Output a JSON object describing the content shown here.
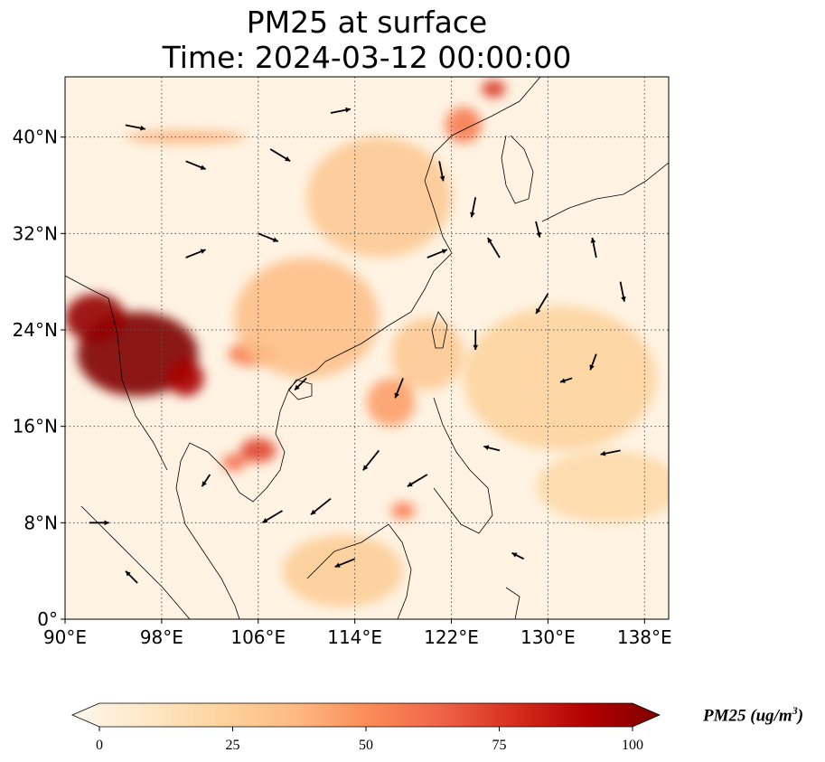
{
  "header": {
    "title": "PM25 at surface",
    "subtitle": "Time: 2024-03-12 00:00:00"
  },
  "map": {
    "projection": "PlateCarree",
    "lon_range": [
      90,
      140
    ],
    "lat_range": [
      0,
      45
    ],
    "gridlines": true,
    "lon_ticks": [
      {
        "value": 90,
        "label": "90°E"
      },
      {
        "value": 98,
        "label": "98°E"
      },
      {
        "value": 106,
        "label": "106°E"
      },
      {
        "value": 114,
        "label": "114°E"
      },
      {
        "value": 122,
        "label": "122°E"
      },
      {
        "value": 130,
        "label": "130°E"
      },
      {
        "value": 138,
        "label": "138°E"
      }
    ],
    "lat_ticks": [
      {
        "value": 0,
        "label": "0°"
      },
      {
        "value": 8,
        "label": "8°N"
      },
      {
        "value": 16,
        "label": "16°N"
      },
      {
        "value": 24,
        "label": "24°N"
      },
      {
        "value": 32,
        "label": "32°N"
      },
      {
        "value": 40,
        "label": "40°N"
      }
    ],
    "pm25_field_approx": [
      {
        "lon": 96,
        "lat": 22,
        "rx": 5,
        "ry": 3.5,
        "value": 100
      },
      {
        "lon": 92.5,
        "lat": 25,
        "rx": 2.5,
        "ry": 2,
        "value": 95
      },
      {
        "lon": 100,
        "lat": 20,
        "rx": 1.5,
        "ry": 1.5,
        "value": 90
      },
      {
        "lon": 106,
        "lat": 14,
        "rx": 1.5,
        "ry": 1,
        "value": 70
      },
      {
        "lon": 104,
        "lat": 13,
        "rx": 1,
        "ry": 0.7,
        "value": 60
      },
      {
        "lon": 105.5,
        "lat": 22,
        "rx": 2,
        "ry": 1,
        "value": 55
      },
      {
        "lon": 110,
        "lat": 25,
        "rx": 6,
        "ry": 5,
        "value": 35
      },
      {
        "lon": 116,
        "lat": 35,
        "rx": 6,
        "ry": 5,
        "value": 30
      },
      {
        "lon": 120,
        "lat": 22,
        "rx": 3,
        "ry": 3,
        "value": 30
      },
      {
        "lon": 123,
        "lat": 41,
        "rx": 1.5,
        "ry": 1.5,
        "value": 55
      },
      {
        "lon": 125.5,
        "lat": 44,
        "rx": 1,
        "ry": 0.7,
        "value": 75
      },
      {
        "lon": 118,
        "lat": 9,
        "rx": 1,
        "ry": 0.7,
        "value": 55
      },
      {
        "lon": 117,
        "lat": 18,
        "rx": 2,
        "ry": 2,
        "value": 45
      },
      {
        "lon": 100,
        "lat": 40,
        "rx": 5,
        "ry": 0.5,
        "value": 40
      },
      {
        "lon": 131,
        "lat": 20,
        "rx": 8,
        "ry": 6,
        "value": 25
      },
      {
        "lon": 135,
        "lat": 11,
        "rx": 6,
        "ry": 3,
        "value": 22
      },
      {
        "lon": 113,
        "lat": 4,
        "rx": 5,
        "ry": 3,
        "value": 28
      }
    ],
    "wind_vectors_approx": [
      {
        "lon": 95,
        "lat": 41,
        "u": 1,
        "v": -0.2
      },
      {
        "lon": 100,
        "lat": 38,
        "u": 1,
        "v": -0.4
      },
      {
        "lon": 107,
        "lat": 39,
        "u": 1,
        "v": -0.6
      },
      {
        "lon": 112,
        "lat": 42,
        "u": 1,
        "v": 0.2
      },
      {
        "lon": 121,
        "lat": 38,
        "u": 0.2,
        "v": -1
      },
      {
        "lon": 124,
        "lat": 35,
        "u": -0.2,
        "v": -1
      },
      {
        "lon": 120,
        "lat": 30,
        "u": 1,
        "v": 0.4
      },
      {
        "lon": 126,
        "lat": 30,
        "u": -0.6,
        "v": 1
      },
      {
        "lon": 134,
        "lat": 30,
        "u": -0.2,
        "v": 1
      },
      {
        "lon": 136,
        "lat": 28,
        "u": 0.2,
        "v": -1
      },
      {
        "lon": 130,
        "lat": 27,
        "u": -0.6,
        "v": -1
      },
      {
        "lon": 124,
        "lat": 24,
        "u": 0,
        "v": -1
      },
      {
        "lon": 118,
        "lat": 20,
        "u": -0.4,
        "v": -1
      },
      {
        "lon": 116,
        "lat": 14,
        "u": -0.8,
        "v": -1
      },
      {
        "lon": 112,
        "lat": 10,
        "u": -1,
        "v": -0.8
      },
      {
        "lon": 108,
        "lat": 9,
        "u": -1,
        "v": -0.6
      },
      {
        "lon": 114,
        "lat": 5,
        "u": -1,
        "v": -0.4
      },
      {
        "lon": 120,
        "lat": 12,
        "u": -1,
        "v": -0.6
      },
      {
        "lon": 126,
        "lat": 14,
        "u": -0.8,
        "v": 0.2
      },
      {
        "lon": 132,
        "lat": 20,
        "u": -0.6,
        "v": -0.2
      },
      {
        "lon": 136,
        "lat": 14,
        "u": -1,
        "v": -0.2
      },
      {
        "lon": 100,
        "lat": 30,
        "u": 1,
        "v": 0.4
      },
      {
        "lon": 106,
        "lat": 32,
        "u": 1,
        "v": -0.4
      },
      {
        "lon": 110,
        "lat": 20,
        "u": -0.6,
        "v": -0.6
      },
      {
        "lon": 92,
        "lat": 8,
        "u": 1,
        "v": 0
      },
      {
        "lon": 96,
        "lat": 3,
        "u": -0.6,
        "v": 0.6
      },
      {
        "lon": 102,
        "lat": 12,
        "u": -0.4,
        "v": -0.6
      },
      {
        "lon": 128,
        "lat": 5,
        "u": -0.6,
        "v": 0.3
      },
      {
        "lon": 134,
        "lat": 22,
        "u": -0.3,
        "v": -0.8
      },
      {
        "lon": 129,
        "lat": 33,
        "u": 0.2,
        "v": -0.8
      }
    ]
  },
  "colorbar": {
    "vmin": 0,
    "vmax": 100,
    "extend": "both",
    "cmap": "OrRd",
    "stops": [
      "#fff7ec",
      "#fee8c8",
      "#fdd49e",
      "#fdbb84",
      "#fc8d59",
      "#ef6548",
      "#d7301f",
      "#b30000",
      "#7f0000"
    ],
    "ticks": [
      {
        "value": 0,
        "label": "0"
      },
      {
        "value": 25,
        "label": "25"
      },
      {
        "value": 50,
        "label": "50"
      },
      {
        "value": 75,
        "label": "75"
      },
      {
        "value": 100,
        "label": "100"
      }
    ],
    "label": "PM25 (ug/m",
    "label_sup": "3",
    "label_close": ")"
  }
}
